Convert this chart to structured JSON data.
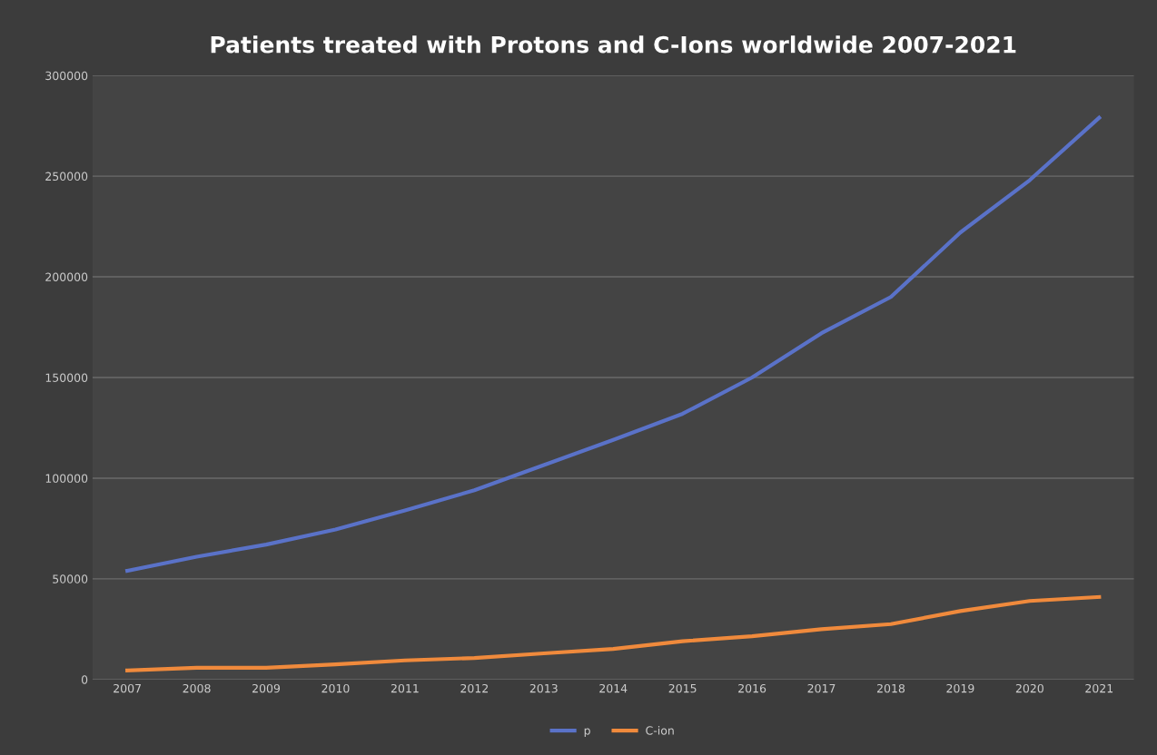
{
  "chart_data": {
    "type": "line",
    "title": "Patients treated with Protons and C-Ions worldwide 2007-2021",
    "categories": [
      "2007",
      "2008",
      "2009",
      "2010",
      "2011",
      "2012",
      "2013",
      "2014",
      "2015",
      "2016",
      "2017",
      "2018",
      "2019",
      "2020",
      "2021"
    ],
    "series": [
      {
        "name": "p",
        "color": "#5a72c8",
        "values": [
          54000,
          61000,
          67000,
          74500,
          84000,
          94000,
          106500,
          119000,
          132000,
          150000,
          172000,
          190000,
          222000,
          248000,
          279000
        ]
      },
      {
        "name": "C-ion",
        "color": "#f08a3c",
        "values": [
          4500,
          5800,
          5800,
          7500,
          9500,
          10700,
          13000,
          15200,
          19000,
          21500,
          25000,
          27500,
          34000,
          39000,
          41000
        ]
      }
    ],
    "ylim": [
      0,
      300000
    ],
    "yticks": [
      0,
      50000,
      100000,
      150000,
      200000,
      250000,
      300000
    ],
    "grid": "y",
    "legend": "bottom",
    "marker": "none",
    "line_style": "solid"
  }
}
